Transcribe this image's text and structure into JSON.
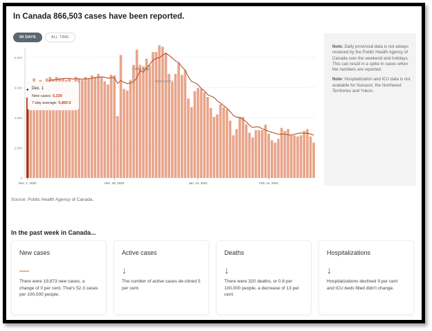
{
  "title": "In Canada 866,503 cases have been reported.",
  "tabs": [
    {
      "label": "90 DAYS",
      "active": true
    },
    {
      "label": "ALL TIME",
      "active": false
    }
  ],
  "chart_data": {
    "type": "bar",
    "x_start": "Dec. 1, 2020",
    "x_ticks": [
      {
        "label": "Dec. 1, 2020",
        "day": 0
      },
      {
        "label": "Dec. 28, 2020",
        "day": 27
      },
      {
        "label": "Jan. 23, 2021",
        "day": 53
      },
      {
        "label": "Feb. 14, 2021",
        "day": 75
      }
    ],
    "y_ticks": [
      "0",
      "2,000",
      "4,000",
      "6,000",
      "8,000"
    ],
    "ylim": [
      0,
      9000
    ],
    "grid": true,
    "series": [
      {
        "name": "New cases",
        "type": "bar",
        "color": "#e8a48a",
        "values": [
          5329,
          6300,
          6600,
          6300,
          6500,
          6400,
          6600,
          6700,
          6500,
          6700,
          6600,
          6600,
          6500,
          6600,
          6400,
          6700,
          6600,
          6500,
          6700,
          6600,
          6800,
          6700,
          6900,
          6700,
          6400,
          6200,
          6850,
          6800,
          4100,
          8150,
          5900,
          5800,
          6500,
          7500,
          8500,
          7500,
          7400,
          7900,
          7500,
          8350,
          8350,
          8800,
          8700,
          8300,
          6900,
          6340,
          6900,
          7630,
          6830,
          7140,
          5270,
          4700,
          5760,
          5970,
          5900,
          5680,
          5370,
          4640,
          4050,
          4210,
          4890,
          4700,
          4550,
          3800,
          2830,
          3240,
          4050,
          4050,
          3560,
          3000,
          2680,
          3170,
          3170,
          3170,
          3530,
          2930,
          2500,
          2340,
          2590,
          3320,
          3120,
          3240,
          2830,
          2830,
          2750,
          2830,
          3120,
          3240,
          2750,
          2340
        ]
      },
      {
        "name": "7-day avg.",
        "type": "line",
        "color": "#b5502a"
      }
    ],
    "annotations": {
      "avg_label": "7-day avg.",
      "bars_label": "New cases"
    },
    "highlight_color": "#a83a12",
    "tooltip": {
      "date": "Dec. 1",
      "new_cases_label": "New cases:",
      "new_cases": "5,329",
      "avg_label": "7-day average:",
      "avg": "5,860.6"
    }
  },
  "notes": [
    {
      "label": "Note:",
      "text": " Daily provincial data is not always received by the Public Health Agency of Canada over the weekend and holidays. This can result in a spike in cases when the numbers are reported."
    },
    {
      "label": "Note:",
      "text": " Hospitalization and ICU data is not available for Nunavut, the Northwest Territories and Yukon."
    }
  ],
  "source": "Source: Public Health Agency of Canada.",
  "section_title": "In the past week in Canada...",
  "cards": [
    {
      "title": "New cases",
      "icon": "dash-icon",
      "glyph": "—",
      "color": "#c8653a",
      "text": "There were 19,873 new cases, a change of 0 per cent. That's 52.3 cases per 100,000 people."
    },
    {
      "title": "Active cases",
      "icon": "arrow-down-icon",
      "glyph": "↓",
      "color": "#b5502a",
      "text": "The number of active cases de-clined 5 per cent."
    },
    {
      "title": "Deaths",
      "icon": "arrow-down-icon",
      "glyph": "↓",
      "color": "#2b6e99",
      "text": "There were 320 deaths, or 0.8 per 100,000 people, a decrease of 13 per cent."
    },
    {
      "title": "Hospitalizations",
      "icon": "arrow-down-icon",
      "glyph": "↓",
      "color": "#8e2a8e",
      "text": "Hospitalizations declined 9 per cent and ICU beds filled didn't change."
    }
  ]
}
